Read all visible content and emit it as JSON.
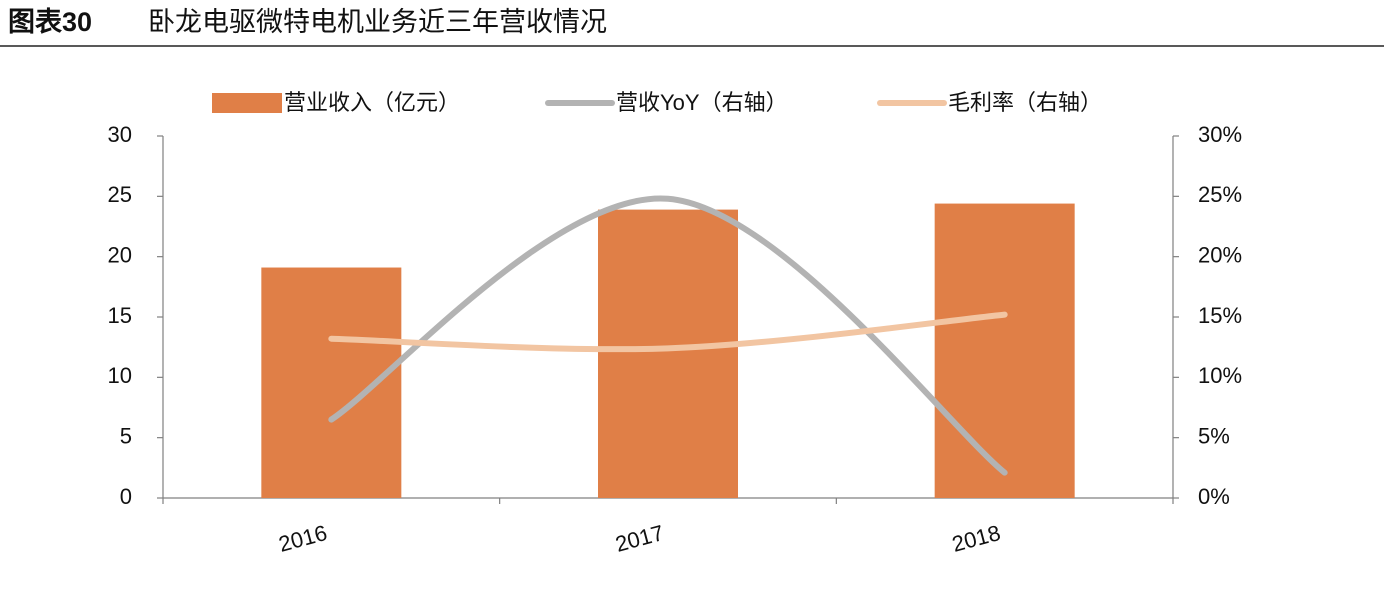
{
  "chart_data": {
    "type": "bar_line",
    "figure_label": "图表30",
    "title": "卧龙电驱微特电机业务近三年营收情况",
    "categories": [
      "2016",
      "2017",
      "2018"
    ],
    "series": [
      {
        "name": "营业收入（亿元）",
        "type": "bar",
        "color": "#E07F47",
        "values": [
          19.1,
          23.9,
          24.4
        ]
      },
      {
        "name": "营收YoY（右轴）",
        "type": "line",
        "axis": "y2",
        "color": "#B3B3B3",
        "values": [
          6.5,
          24.8,
          2.1
        ]
      },
      {
        "name": "毛利率（右轴）",
        "type": "line",
        "axis": "y2",
        "color": "#F2C5A2",
        "values": [
          13.2,
          12.4,
          15.2
        ]
      }
    ],
    "ylim": [
      0,
      30
    ],
    "yticks": [
      0,
      5,
      10,
      15,
      20,
      25,
      30
    ],
    "y2lim": [
      0,
      30
    ],
    "y2ticks": [
      {
        "value": 0,
        "label": "0%"
      },
      {
        "value": 5,
        "label": "5%"
      },
      {
        "value": 10,
        "label": "10%"
      },
      {
        "value": 15,
        "label": "15%"
      },
      {
        "value": 20,
        "label": "20%"
      },
      {
        "value": 25,
        "label": "25%"
      },
      {
        "value": 30,
        "label": "30%"
      }
    ],
    "legend": "top",
    "grid": false
  }
}
